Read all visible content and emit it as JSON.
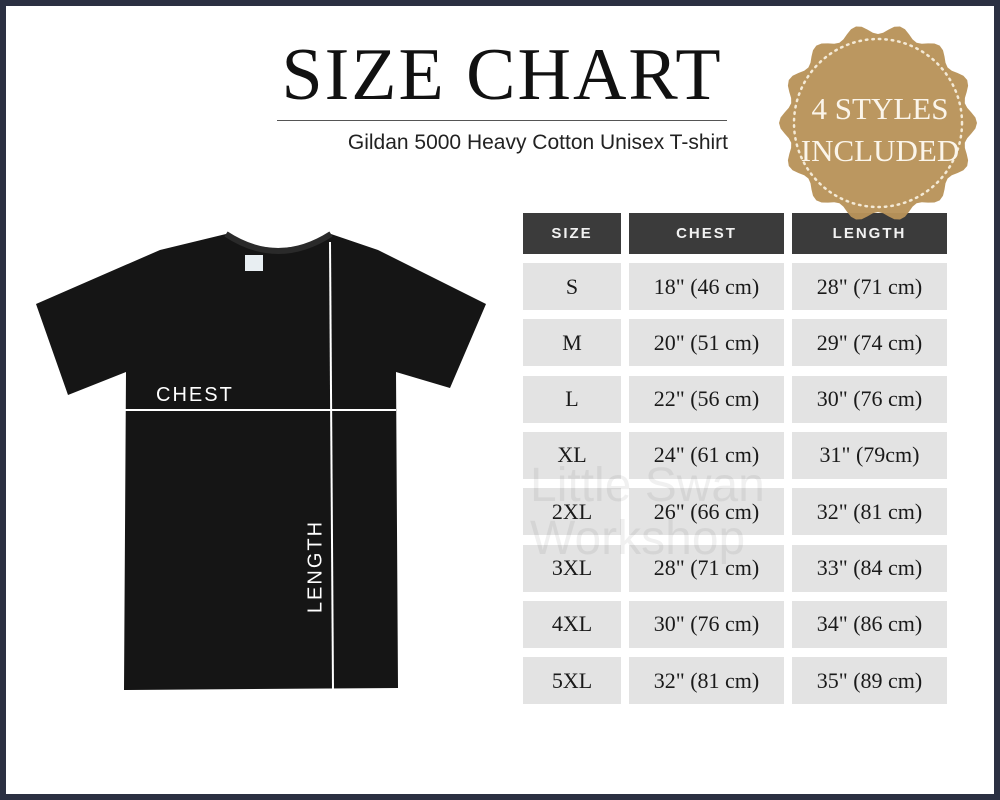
{
  "header": {
    "title": "SIZE CHART",
    "subtitle": "Gildan 5000 Heavy Cotton Unisex T-shirt"
  },
  "badge": {
    "line1": "4 STYLES",
    "line2": "INCLUDED",
    "color": "#b8935a"
  },
  "shirt": {
    "color": "#151515",
    "chest_label": "CHEST",
    "length_label": "LENGTH"
  },
  "watermark": "Little Swan Workshop",
  "table": {
    "headers": [
      "SIZE",
      "CHEST",
      "LENGTH"
    ],
    "rows": [
      [
        "S",
        "18\" (46 cm)",
        "28\" (71 cm)"
      ],
      [
        "M",
        "20\" (51 cm)",
        "29\" (74 cm)"
      ],
      [
        "L",
        "22\" (56 cm)",
        "30\" (76 cm)"
      ],
      [
        "XL",
        "24\" (61 cm)",
        "31\" (79cm)"
      ],
      [
        "2XL",
        "26\" (66 cm)",
        "32\" (81 cm)"
      ],
      [
        "3XL",
        "28\" (71 cm)",
        "33\" (84 cm)"
      ],
      [
        "4XL",
        "30\" (76 cm)",
        "34\" (86 cm)"
      ],
      [
        "5XL",
        "32\" (81 cm)",
        "35\" (89 cm)"
      ]
    ]
  },
  "colors": {
    "frame": "#2b3042",
    "header_bg": "#3b3b3b",
    "cell_bg": "#e3e3e3"
  }
}
